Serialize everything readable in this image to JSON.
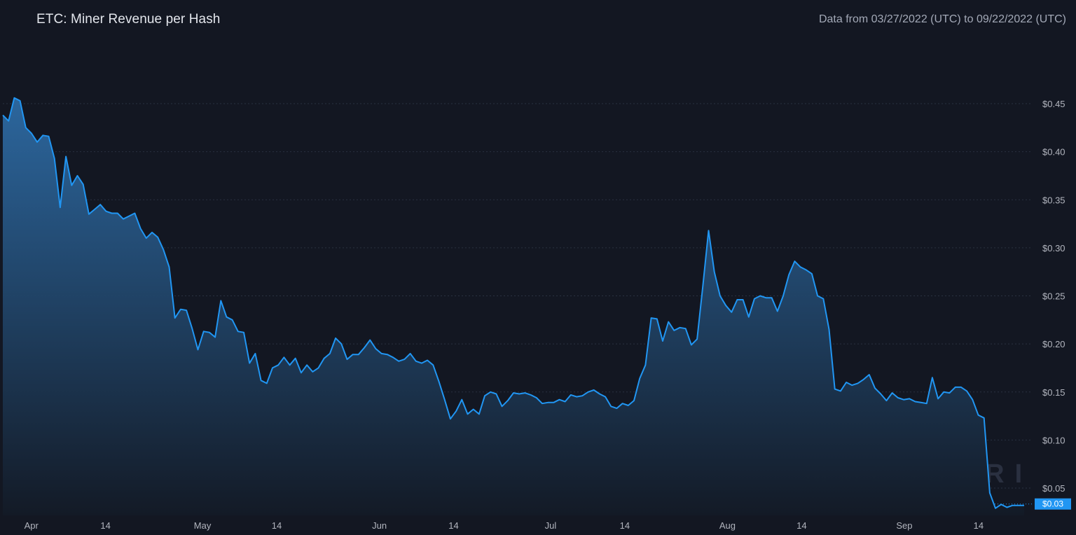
{
  "header": {
    "title": "ETC: Miner Revenue per Hash",
    "range": "Data from 03/27/2022 (UTC) to 09/22/2022 (UTC)"
  },
  "watermark": {
    "text": "MESSARI",
    "icon": "messari-logo-icon"
  },
  "colors": {
    "background": "#131722",
    "line": "#2196f3",
    "fill_top": "#2d6aa3",
    "fill_bottom": "#131a26",
    "grid": "#2a3140",
    "tick_text": "#b2b5be",
    "last_value_bg": "#2196f3"
  },
  "chart_data": {
    "type": "area",
    "title": "ETC: Miner Revenue per Hash",
    "xlabel": "",
    "ylabel": "",
    "x_start": "2022-03-27",
    "x_end": "2022-09-22",
    "ylim": [
      0.03,
      0.5
    ],
    "y_ticks": [
      0.05,
      0.1,
      0.15,
      0.2,
      0.25,
      0.3,
      0.35,
      0.4,
      0.45
    ],
    "y_tick_labels": [
      "$0.05",
      "$0.10",
      "$0.15",
      "$0.20",
      "$0.25",
      "$0.30",
      "$0.35",
      "$0.40",
      "$0.45"
    ],
    "x_ticks": [
      {
        "label": "Apr",
        "date": "2022-04-01"
      },
      {
        "label": "14",
        "date": "2022-04-14"
      },
      {
        "label": "May",
        "date": "2022-05-01"
      },
      {
        "label": "14",
        "date": "2022-05-14"
      },
      {
        "label": "Jun",
        "date": "2022-06-01"
      },
      {
        "label": "14",
        "date": "2022-06-14"
      },
      {
        "label": "Jul",
        "date": "2022-07-01"
      },
      {
        "label": "14",
        "date": "2022-07-14"
      },
      {
        "label": "Aug",
        "date": "2022-08-01"
      },
      {
        "label": "14",
        "date": "2022-08-14"
      },
      {
        "label": "Sep",
        "date": "2022-09-01"
      },
      {
        "label": "14",
        "date": "2022-09-14"
      }
    ],
    "grid": true,
    "legend": "none",
    "last_value_label": "$0.03",
    "series": [
      {
        "values": [
          0.438,
          0.432,
          0.456,
          0.453,
          0.425,
          0.419,
          0.41,
          0.417,
          0.416,
          0.393,
          0.342,
          0.395,
          0.365,
          0.375,
          0.366,
          0.335,
          0.34,
          0.345,
          0.338,
          0.336,
          0.336,
          0.33,
          0.333,
          0.336,
          0.32,
          0.31,
          0.316,
          0.311,
          0.298,
          0.28,
          0.227,
          0.236,
          0.235,
          0.216,
          0.194,
          0.213,
          0.212,
          0.207,
          0.245,
          0.228,
          0.225,
          0.213,
          0.212,
          0.18,
          0.19,
          0.162,
          0.159,
          0.175,
          0.178,
          0.186,
          0.178,
          0.185,
          0.17,
          0.178,
          0.171,
          0.175,
          0.185,
          0.19,
          0.206,
          0.2,
          0.184,
          0.189,
          0.189,
          0.196,
          0.204,
          0.195,
          0.19,
          0.189,
          0.186,
          0.182,
          0.184,
          0.19,
          0.182,
          0.18,
          0.183,
          0.178,
          0.161,
          0.142,
          0.122,
          0.13,
          0.142,
          0.127,
          0.132,
          0.127,
          0.146,
          0.15,
          0.148,
          0.135,
          0.141,
          0.149,
          0.148,
          0.149,
          0.147,
          0.144,
          0.138,
          0.139,
          0.139,
          0.142,
          0.14,
          0.147,
          0.145,
          0.146,
          0.15,
          0.152,
          0.148,
          0.145,
          0.135,
          0.133,
          0.138,
          0.136,
          0.141,
          0.164,
          0.178,
          0.227,
          0.226,
          0.203,
          0.223,
          0.214,
          0.217,
          0.216,
          0.199,
          0.205,
          0.26,
          0.318,
          0.275,
          0.25,
          0.24,
          0.233,
          0.246,
          0.246,
          0.228,
          0.247,
          0.25,
          0.248,
          0.248,
          0.234,
          0.25,
          0.272,
          0.286,
          0.28,
          0.277,
          0.273,
          0.25,
          0.247,
          0.215,
          0.153,
          0.151,
          0.16,
          0.157,
          0.159,
          0.163,
          0.168,
          0.154,
          0.148,
          0.141,
          0.149,
          0.144,
          0.142,
          0.143,
          0.14,
          0.139,
          0.138,
          0.165,
          0.143,
          0.15,
          0.149,
          0.155,
          0.155,
          0.151,
          0.142,
          0.126,
          0.123,
          0.045,
          0.029,
          0.033,
          0.03,
          0.032,
          0.032,
          0.032
        ]
      }
    ]
  }
}
